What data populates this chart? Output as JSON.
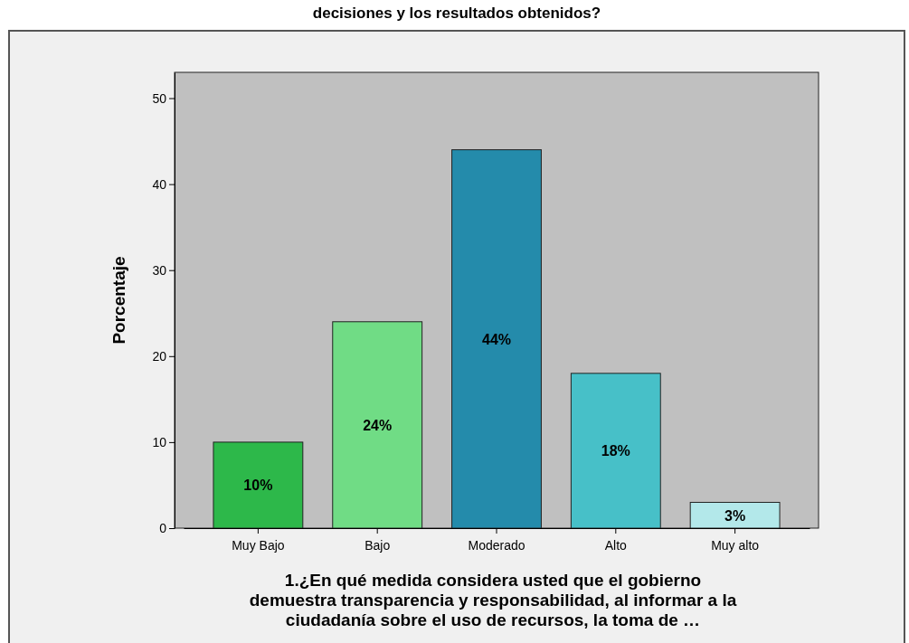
{
  "chart_data": {
    "type": "bar",
    "title": "decisiones y los resultados obtenidos?",
    "xlabel": "1.¿En qué medida considera usted que el gobierno demuestra transparencia y responsabilidad, al informar a la ciudadanía sobre el uso de recursos, la toma de …",
    "ylabel": "Porcentaje",
    "categories": [
      "Muy Bajo",
      "Bajo",
      "Moderado",
      "Alto",
      "Muy alto"
    ],
    "values": [
      10,
      24,
      44,
      18,
      3
    ],
    "colors": [
      "#2db84a",
      "#70dc85",
      "#248bab",
      "#47c0c8",
      "#b3e8ea"
    ],
    "value_labels": [
      "10%",
      "24%",
      "44%",
      "18%",
      "3%"
    ],
    "ylim": [
      0,
      53
    ],
    "yticks": [
      0,
      10,
      20,
      30,
      40,
      50
    ],
    "grid": false
  }
}
